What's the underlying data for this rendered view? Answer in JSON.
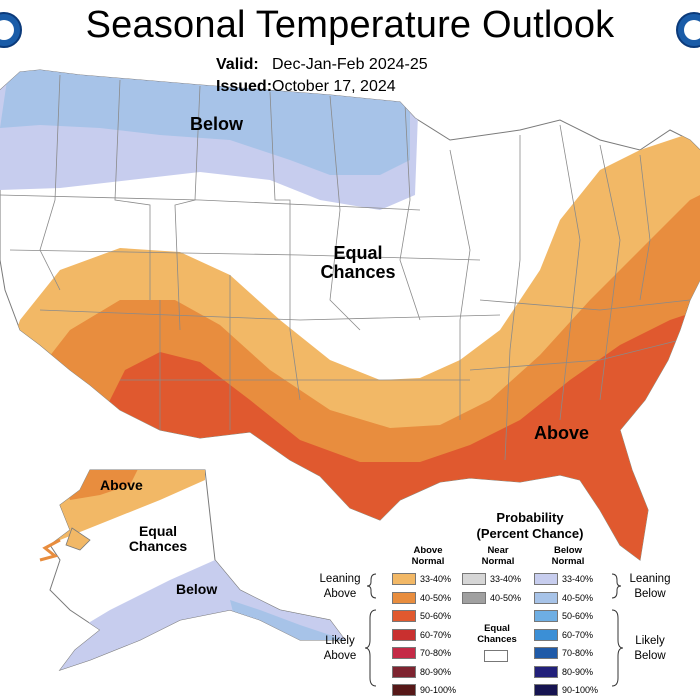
{
  "title": "Seasonal Temperature Outlook",
  "valid_label": "Valid:",
  "valid_value": "Dec-Jan-Feb 2024-25",
  "issued_label": "Issued:",
  "issued_value": "October 17, 2024",
  "map_labels": {
    "below": "Below",
    "equal_chances_1": "Equal",
    "equal_chances_2": "Chances",
    "above": "Above",
    "ak_above": "Above",
    "ak_equal_1": "Equal",
    "ak_equal_2": "Chances",
    "ak_below": "Below"
  },
  "legend": {
    "title_1": "Probability",
    "title_2": "(Percent Chance)",
    "col_above_1": "Above",
    "col_above_2": "Normal",
    "col_near_1": "Near",
    "col_near_2": "Normal",
    "col_below_1": "Below",
    "col_below_2": "Normal",
    "leaning_above_1": "Leaning",
    "leaning_above_2": "Above",
    "leaning_below_1": "Leaning",
    "leaning_below_2": "Below",
    "likely_above_1": "Likely",
    "likely_above_2": "Above",
    "likely_below_1": "Likely",
    "likely_below_2": "Below",
    "ec_1": "Equal",
    "ec_2": "Chances",
    "above_swatches": [
      {
        "label": "33-40%",
        "color": "#f2b866"
      },
      {
        "label": "40-50%",
        "color": "#e88d3e"
      },
      {
        "label": "50-60%",
        "color": "#e0592f"
      },
      {
        "label": "60-70%",
        "color": "#c9302f"
      },
      {
        "label": "70-80%",
        "color": "#c42a46"
      },
      {
        "label": "80-90%",
        "color": "#7e2430"
      },
      {
        "label": "90-100%",
        "color": "#561818"
      }
    ],
    "near_swatches": [
      {
        "label": "33-40%",
        "color": "#d6d6d6"
      },
      {
        "label": "40-50%",
        "color": "#a0a0a0"
      }
    ],
    "below_swatches": [
      {
        "label": "33-40%",
        "color": "#c7cdee"
      },
      {
        "label": "40-50%",
        "color": "#a7c3e8"
      },
      {
        "label": "50-60%",
        "color": "#6eaee3"
      },
      {
        "label": "60-70%",
        "color": "#3b8fd6"
      },
      {
        "label": "70-80%",
        "color": "#1f5aa8"
      },
      {
        "label": "80-90%",
        "color": "#22207a"
      },
      {
        "label": "90-100%",
        "color": "#161451"
      }
    ]
  },
  "colors": {
    "blue_dark": "#a7c3e8",
    "blue_light": "#c7cdee",
    "orange_light": "#f2b866",
    "orange_mid": "#e88d3e",
    "orange_dark": "#e0592f",
    "border": "#7a7a7a"
  }
}
